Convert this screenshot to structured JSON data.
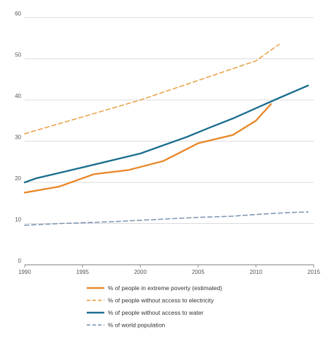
{
  "chart_data": {
    "type": "line",
    "title": "",
    "xlabel": "",
    "ylabel": "",
    "xlim": [
      1990,
      2015
    ],
    "ylim": [
      0,
      60
    ],
    "x_ticks": [
      "1990",
      "1995",
      "2000",
      "2005",
      "2010",
      "2015"
    ],
    "y_ticks": [
      "0",
      "10",
      "20",
      "30",
      "40",
      "50",
      "60"
    ],
    "grid": "horizontal",
    "legend_position": "bottom",
    "series": [
      {
        "name": "% of people in extreme poverty (estimated)",
        "color": "#E8892B",
        "style": "solid",
        "points": [
          [
            1990,
            17.5
          ],
          [
            1993,
            19
          ],
          [
            1996,
            22
          ],
          [
            1999,
            23
          ],
          [
            2002,
            25.2
          ],
          [
            2005,
            29.5
          ],
          [
            2008,
            31.5
          ],
          [
            2010,
            35
          ],
          [
            2011.3,
            39
          ]
        ]
      },
      {
        "name": "% of people without access to electricity",
        "color": "#E8A34A",
        "style": "dashed",
        "points": [
          [
            1990,
            31.8
          ],
          [
            2000,
            40
          ],
          [
            2010,
            49.5
          ],
          [
            2012,
            53.5
          ]
        ]
      },
      {
        "name": "% of people without access to water",
        "color": "#1A6E8E",
        "style": "solid",
        "points": [
          [
            1990,
            20
          ],
          [
            1991,
            21
          ],
          [
            1993,
            22.3
          ],
          [
            1996,
            24.3
          ],
          [
            2000,
            27
          ],
          [
            2002,
            29
          ],
          [
            2004,
            31
          ],
          [
            2006,
            33.3
          ],
          [
            2008,
            35.5
          ],
          [
            2010,
            38
          ],
          [
            2012,
            40.5
          ],
          [
            2014.5,
            43.5
          ]
        ]
      },
      {
        "name": "% of world population",
        "color": "#7C97B2",
        "style": "dashed",
        "points": [
          [
            1990,
            9.6
          ],
          [
            1993,
            10
          ],
          [
            1998,
            10.5
          ],
          [
            2000,
            10.8
          ],
          [
            2005,
            11.5
          ],
          [
            2008,
            11.8
          ],
          [
            2010,
            12.2
          ],
          [
            2013,
            12.7
          ],
          [
            2014.5,
            12.8
          ]
        ]
      }
    ]
  }
}
